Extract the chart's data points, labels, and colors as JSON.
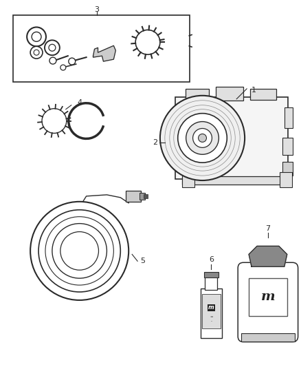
{
  "background_color": "#ffffff",
  "line_color": "#2a2a2a",
  "fig_width": 4.38,
  "fig_height": 5.33,
  "dpi": 100
}
